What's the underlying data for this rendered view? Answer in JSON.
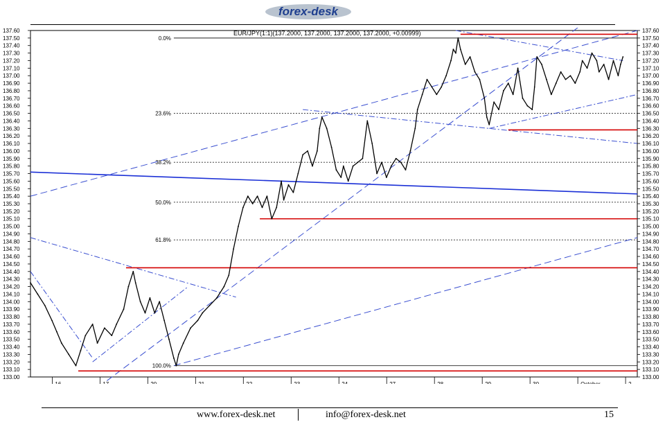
{
  "brand": {
    "logo_text": "forex-desk",
    "logo_color": "#1f3f8f",
    "logo_swoosh_color": "#b9c3cf"
  },
  "footer": {
    "site": "www.forex-desk.net",
    "email": "info@forex-desk.net",
    "page_number": "15"
  },
  "chart_data": {
    "type": "line",
    "title": "EUR/JPY(1:1)(137.2000, 137.2000, 137.2000, 137.2000, +0.00999)",
    "xlabel": "",
    "ylabel": "",
    "ylim": [
      133.0,
      137.6
    ],
    "y_ticks": [
      "133.00",
      "133.10",
      "133.20",
      "133.30",
      "133.40",
      "133.50",
      "133.60",
      "133.70",
      "133.80",
      "133.90",
      "134.00",
      "134.10",
      "134.20",
      "134.30",
      "134.40",
      "134.50",
      "134.60",
      "134.70",
      "134.80",
      "134.90",
      "135.00",
      "135.10",
      "135.20",
      "135.30",
      "135.40",
      "135.50",
      "135.60",
      "135.70",
      "135.80",
      "135.90",
      "136.00",
      "136.10",
      "136.20",
      "136.30",
      "136.40",
      "136.50",
      "136.60",
      "136.70",
      "136.80",
      "136.90",
      "137.00",
      "137.10",
      "137.20",
      "137.30",
      "137.40",
      "137.50",
      "137.60"
    ],
    "x_ticks": [
      {
        "label": "16",
        "x": 0.6
      },
      {
        "label": "17",
        "x": 1.6
      },
      {
        "label": "20",
        "x": 2.6
      },
      {
        "label": "21",
        "x": 3.6
      },
      {
        "label": "22",
        "x": 4.6
      },
      {
        "label": "23",
        "x": 5.6
      },
      {
        "label": "24",
        "x": 6.6
      },
      {
        "label": "27",
        "x": 7.6
      },
      {
        "label": "28",
        "x": 8.6
      },
      {
        "label": "29",
        "x": 9.6
      },
      {
        "label": "30",
        "x": 10.6
      },
      {
        "label": "October",
        "x": 11.6
      },
      {
        "label": "2",
        "x": 12.6
      }
    ],
    "xlim": [
      0,
      12.7
    ],
    "price_series": {
      "name": "EUR/JPY",
      "points": [
        [
          0.0,
          134.25
        ],
        [
          0.15,
          134.1
        ],
        [
          0.3,
          133.95
        ],
        [
          0.45,
          133.75
        ],
        [
          0.55,
          133.6
        ],
        [
          0.65,
          133.45
        ],
        [
          0.8,
          133.3
        ],
        [
          0.95,
          133.15
        ],
        [
          1.05,
          133.35
        ],
        [
          1.15,
          133.55
        ],
        [
          1.3,
          133.7
        ],
        [
          1.4,
          133.45
        ],
        [
          1.55,
          133.65
        ],
        [
          1.7,
          133.55
        ],
        [
          1.8,
          133.7
        ],
        [
          1.95,
          133.9
        ],
        [
          2.05,
          134.2
        ],
        [
          2.15,
          134.4
        ],
        [
          2.2,
          134.25
        ],
        [
          2.3,
          134.0
        ],
        [
          2.4,
          133.85
        ],
        [
          2.5,
          134.05
        ],
        [
          2.6,
          133.85
        ],
        [
          2.7,
          134.0
        ],
        [
          2.8,
          133.75
        ],
        [
          2.9,
          133.5
        ],
        [
          3.0,
          133.25
        ],
        [
          3.05,
          133.15
        ],
        [
          3.1,
          133.3
        ],
        [
          3.2,
          133.45
        ],
        [
          3.35,
          133.65
        ],
        [
          3.5,
          133.75
        ],
        [
          3.6,
          133.85
        ],
        [
          3.75,
          133.95
        ],
        [
          3.9,
          134.05
        ],
        [
          4.05,
          134.2
        ],
        [
          4.15,
          134.35
        ],
        [
          4.25,
          134.7
        ],
        [
          4.35,
          135.0
        ],
        [
          4.45,
          135.25
        ],
        [
          4.55,
          135.4
        ],
        [
          4.65,
          135.3
        ],
        [
          4.75,
          135.4
        ],
        [
          4.85,
          135.25
        ],
        [
          4.95,
          135.4
        ],
        [
          5.05,
          135.1
        ],
        [
          5.15,
          135.25
        ],
        [
          5.25,
          135.6
        ],
        [
          5.3,
          135.35
        ],
        [
          5.4,
          135.55
        ],
        [
          5.5,
          135.45
        ],
        [
          5.6,
          135.7
        ],
        [
          5.7,
          135.95
        ],
        [
          5.8,
          136.0
        ],
        [
          5.9,
          135.8
        ],
        [
          6.0,
          136.0
        ],
        [
          6.05,
          136.3
        ],
        [
          6.1,
          136.45
        ],
        [
          6.2,
          136.3
        ],
        [
          6.3,
          136.05
        ],
        [
          6.4,
          135.75
        ],
        [
          6.5,
          135.65
        ],
        [
          6.55,
          135.8
        ],
        [
          6.65,
          135.6
        ],
        [
          6.75,
          135.8
        ],
        [
          6.85,
          135.85
        ],
        [
          6.95,
          135.9
        ],
        [
          7.05,
          136.4
        ],
        [
          7.15,
          136.1
        ],
        [
          7.25,
          135.7
        ],
        [
          7.35,
          135.85
        ],
        [
          7.45,
          135.65
        ],
        [
          7.55,
          135.8
        ],
        [
          7.65,
          135.9
        ],
        [
          7.75,
          135.85
        ],
        [
          7.85,
          135.75
        ],
        [
          7.95,
          136.0
        ],
        [
          8.05,
          136.3
        ],
        [
          8.1,
          136.55
        ],
        [
          8.2,
          136.75
        ],
        [
          8.3,
          136.95
        ],
        [
          8.4,
          136.85
        ],
        [
          8.5,
          136.75
        ],
        [
          8.6,
          136.85
        ],
        [
          8.7,
          137.0
        ],
        [
          8.8,
          137.2
        ],
        [
          8.85,
          137.35
        ],
        [
          8.9,
          137.3
        ],
        [
          8.95,
          137.5
        ],
        [
          9.0,
          137.35
        ],
        [
          9.1,
          137.15
        ],
        [
          9.2,
          137.25
        ],
        [
          9.3,
          137.05
        ],
        [
          9.4,
          136.95
        ],
        [
          9.5,
          136.7
        ],
        [
          9.55,
          136.45
        ],
        [
          9.6,
          136.35
        ],
        [
          9.7,
          136.65
        ],
        [
          9.8,
          136.55
        ],
        [
          9.9,
          136.8
        ],
        [
          10.0,
          136.9
        ],
        [
          10.1,
          136.75
        ],
        [
          10.2,
          137.1
        ],
        [
          10.3,
          136.7
        ],
        [
          10.4,
          136.6
        ],
        [
          10.5,
          136.55
        ],
        [
          10.55,
          136.85
        ],
        [
          10.6,
          137.25
        ],
        [
          10.7,
          137.15
        ],
        [
          10.8,
          136.95
        ],
        [
          10.9,
          136.75
        ],
        [
          11.0,
          136.9
        ],
        [
          11.1,
          137.05
        ],
        [
          11.2,
          136.95
        ],
        [
          11.3,
          137.0
        ],
        [
          11.4,
          136.9
        ],
        [
          11.5,
          137.05
        ],
        [
          11.55,
          137.2
        ],
        [
          11.65,
          137.1
        ],
        [
          11.75,
          137.3
        ],
        [
          11.85,
          137.2
        ],
        [
          11.9,
          137.05
        ],
        [
          12.0,
          137.15
        ],
        [
          12.1,
          136.95
        ],
        [
          12.2,
          137.2
        ],
        [
          12.3,
          137.0
        ],
        [
          12.35,
          137.15
        ],
        [
          12.4,
          137.25
        ]
      ]
    },
    "fibonacci": {
      "high": 137.5,
      "low": 133.15,
      "x_start": 3.0,
      "levels": [
        {
          "label": "0.0%",
          "value": 137.5
        },
        {
          "label": "23.6%",
          "value": 136.5
        },
        {
          "label": "38.2%",
          "value": 135.85
        },
        {
          "label": "50.0%",
          "value": 135.32
        },
        {
          "label": "61.8%",
          "value": 134.82
        },
        {
          "label": "100.0%",
          "value": 133.15
        }
      ]
    },
    "horizontal_levels": [
      {
        "value": 137.55,
        "from": 9.0,
        "color": "#d40000"
      },
      {
        "value": 136.28,
        "from": 10.0,
        "color": "#d40000"
      },
      {
        "value": 135.1,
        "from": 4.8,
        "color": "#d40000"
      },
      {
        "value": 134.45,
        "from": 2.0,
        "color": "#d40000"
      },
      {
        "value": 133.08,
        "from": 1.0,
        "color": "#d40000"
      }
    ],
    "trendlines": [
      {
        "points": [
          [
            0,
            135.72
          ],
          [
            12.7,
            135.43
          ]
        ],
        "style": "solid",
        "color": "#1a2fd6"
      },
      {
        "points": [
          [
            0,
            135.4
          ],
          [
            12.7,
            137.6
          ]
        ],
        "style": "dash",
        "color": "#3a4fd0"
      },
      {
        "points": [
          [
            1.6,
            132.95
          ],
          [
            11.9,
            137.85
          ]
        ],
        "style": "dash",
        "color": "#3a4fd0"
      },
      {
        "points": [
          [
            3.0,
            133.15
          ],
          [
            12.7,
            134.85
          ]
        ],
        "style": "dash",
        "color": "#3a4fd0"
      },
      {
        "points": [
          [
            0.0,
            134.85
          ],
          [
            4.3,
            134.06
          ]
        ],
        "style": "dashdot",
        "color": "#3a4fd0"
      },
      {
        "points": [
          [
            1.3,
            133.2
          ],
          [
            3.3,
            134.2
          ]
        ],
        "style": "dashdot",
        "color": "#3a4fd0"
      },
      {
        "points": [
          [
            0.0,
            134.4
          ],
          [
            1.3,
            133.25
          ]
        ],
        "style": "dashdot",
        "color": "#3a4fd0"
      },
      {
        "points": [
          [
            5.7,
            136.55
          ],
          [
            12.7,
            136.1
          ]
        ],
        "style": "dashdot",
        "color": "#3a4fd0"
      },
      {
        "points": [
          [
            8.9,
            137.6
          ],
          [
            12.4,
            137.2
          ]
        ],
        "style": "dashdot",
        "color": "#3a4fd0"
      },
      {
        "points": [
          [
            9.6,
            136.3
          ],
          [
            12.7,
            136.75
          ]
        ],
        "style": "dashdot",
        "color": "#3a4fd0"
      }
    ],
    "grid": false,
    "colors": {
      "price": "#000000",
      "fib": "#222222",
      "support": "#d40000",
      "trend": "#2536c9"
    }
  }
}
